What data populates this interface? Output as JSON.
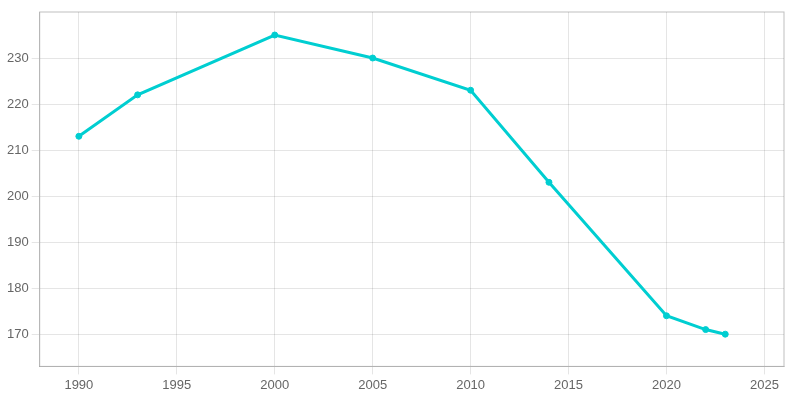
{
  "chart_data": {
    "type": "line",
    "x": [
      1990,
      1993,
      2000,
      2005,
      2010,
      2014,
      2020,
      2022,
      2023
    ],
    "values": [
      213,
      222,
      235,
      230,
      223,
      203,
      174,
      171,
      170
    ],
    "color": "#00CED1",
    "marker": "circle",
    "xlim": [
      1988,
      2026
    ],
    "ylim": [
      163,
      240
    ],
    "xticks": [
      1990,
      1995,
      2000,
      2005,
      2010,
      2015,
      2020,
      2025
    ],
    "yticks": [
      170,
      180,
      190,
      200,
      210,
      220,
      230
    ],
    "grid": true
  }
}
